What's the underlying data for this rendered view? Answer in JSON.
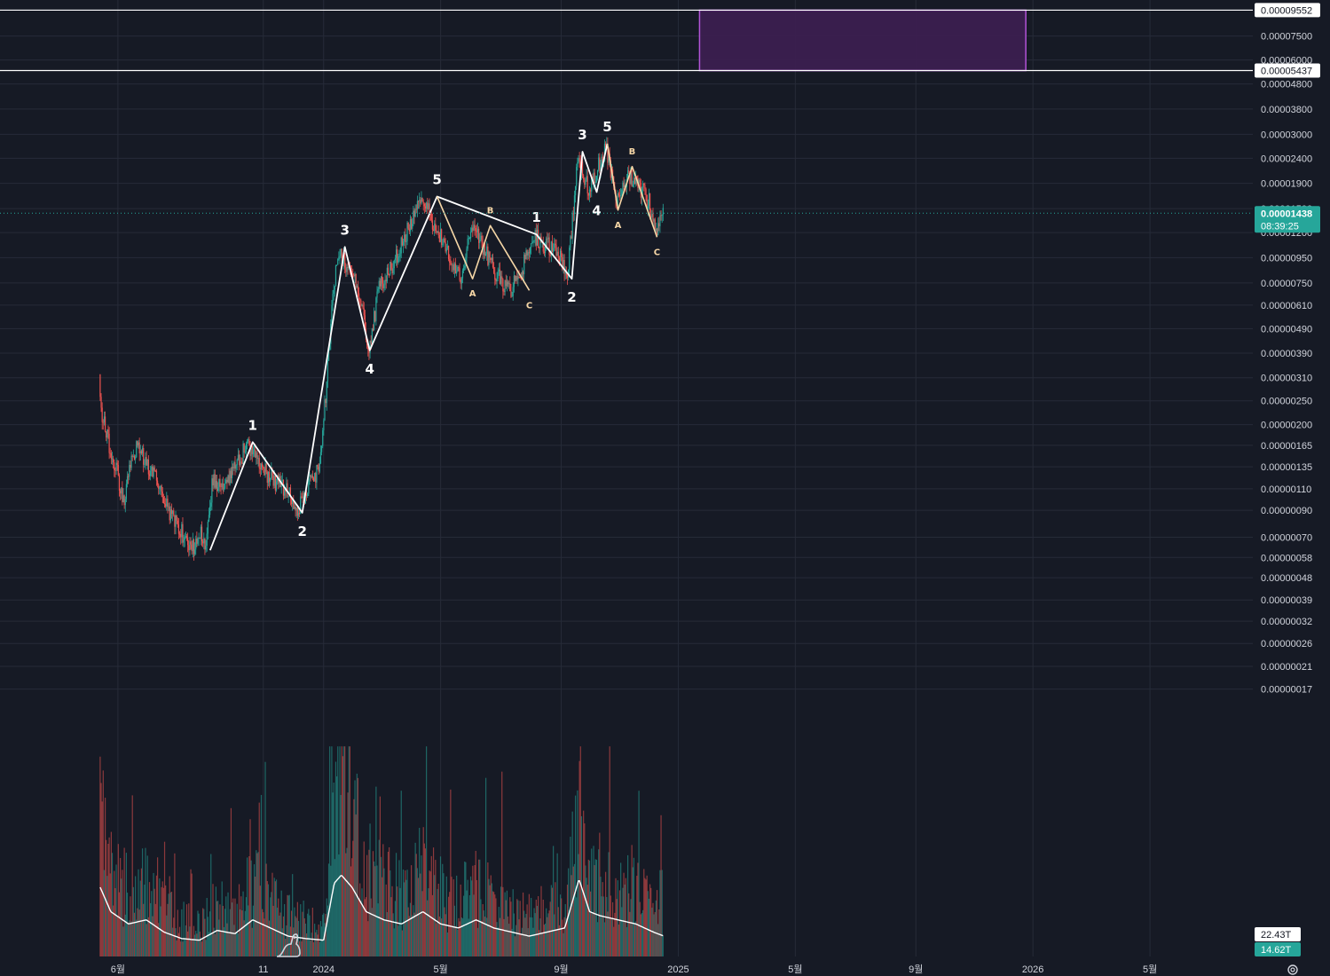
{
  "colors": {
    "background": "#161a25",
    "grid": "#262b38",
    "candle_up": "#26a69a",
    "candle_down": "#ef5350",
    "wave_line": "#ffffff",
    "corrective_line": "#f5d6a6",
    "target_box": "#3b1f4f",
    "target_box_border": "#b154d6",
    "current_price_badge": "#26a69a"
  },
  "chart_data": {
    "type": "candlestick",
    "y_scale": "log",
    "ylim": [
      1.55e-08,
      0.000105
    ],
    "y_ticks": [
      "0.00009552",
      "0.00007500",
      "0.00006000",
      "0.00005437",
      "0.00004800",
      "0.00003800",
      "0.00003000",
      "0.00002400",
      "0.00001900",
      "0.00001500",
      "0.00001200",
      "0.00000950",
      "0.00000750",
      "0.00000610",
      "0.00000490",
      "0.00000390",
      "0.00000310",
      "0.00000250",
      "0.00000200",
      "0.00000165",
      "0.00000135",
      "0.00000110",
      "0.00000090",
      "0.00000070",
      "0.00000058",
      "0.00000048",
      "0.00000039",
      "0.00000032",
      "0.00000026",
      "0.00000021",
      "0.00000017"
    ],
    "x_ticks": [
      "6월",
      "11",
      "2024",
      "5월",
      "9월",
      "2025",
      "5월",
      "9월",
      "2026",
      "5월"
    ],
    "x_ticks_time": [
      2023.42,
      2023.83,
      2024.0,
      2024.33,
      2024.67,
      2025.0,
      2025.33,
      2025.67,
      2026.0,
      2026.33
    ],
    "horizontal_levels": [
      "0.00009552",
      "0.00005437"
    ],
    "target_zone": {
      "from": "2025-01",
      "to": "2025-12",
      "low": "0.00005437",
      "high": "0.00009552"
    },
    "current_price": {
      "value": "0.00001438",
      "countdown": "08:39:25"
    },
    "volume_badges": [
      "22.43T",
      "14.62T"
    ],
    "price_path": [
      [
        2023.37,
        3.2e-06
      ],
      [
        2023.38,
        2.1e-06
      ],
      [
        2023.4,
        1.6e-06
      ],
      [
        2023.42,
        1.3e-06
      ],
      [
        2023.44,
        9.5e-07
      ],
      [
        2023.46,
        1.5e-06
      ],
      [
        2023.48,
        1.7e-06
      ],
      [
        2023.5,
        1.4e-06
      ],
      [
        2023.53,
        1.2e-06
      ],
      [
        2023.56,
        9.5e-07
      ],
      [
        2023.59,
        7.8e-07
      ],
      [
        2023.62,
        6.8e-07
      ],
      [
        2023.64,
        6.4e-07
      ],
      [
        2023.66,
        7.3e-07
      ],
      [
        2023.67,
        6.2e-07
      ],
      [
        2023.69,
        1.2e-06
      ],
      [
        2023.72,
        1.1e-06
      ],
      [
        2023.75,
        1.3e-06
      ],
      [
        2023.79,
        1.7e-06
      ],
      [
        2023.82,
        1.4e-06
      ],
      [
        2023.86,
        1.2e-06
      ],
      [
        2023.9,
        1.1e-06
      ],
      [
        2023.93,
        9.2e-07
      ],
      [
        2023.97,
        1.2e-06
      ],
      [
        2023.99,
        1.3e-06
      ],
      [
        2024.01,
        2.7e-06
      ],
      [
        2024.03,
        7.2e-06
      ],
      [
        2024.05,
        1e-05
      ],
      [
        2024.08,
        8.2e-06
      ],
      [
        2024.11,
        6.5e-06
      ],
      [
        2024.13,
        4e-06
      ],
      [
        2024.16,
        7.2e-06
      ],
      [
        2024.2,
        8.8e-06
      ],
      [
        2024.24,
        1.25e-05
      ],
      [
        2024.28,
        1.65e-05
      ],
      [
        2024.31,
        1.35e-05
      ],
      [
        2024.35,
        1.05e-05
      ],
      [
        2024.39,
        8e-06
      ],
      [
        2024.42,
        1.3e-05
      ],
      [
        2024.46,
        1e-05
      ],
      [
        2024.49,
        8e-06
      ],
      [
        2024.53,
        7e-06
      ],
      [
        2024.56,
        8.5e-06
      ],
      [
        2024.6,
        1.15e-05
      ],
      [
        2024.64,
        1.05e-05
      ],
      [
        2024.67,
        9.5e-06
      ],
      [
        2024.69,
        7.8e-06
      ],
      [
        2024.72,
        2.4e-05
      ],
      [
        2024.75,
        1.8e-05
      ],
      [
        2024.78,
        2.3e-05
      ],
      [
        2024.8,
        2.7e-05
      ],
      [
        2024.83,
        1.6e-05
      ],
      [
        2024.86,
        2.1e-05
      ],
      [
        2024.89,
        1.9e-05
      ],
      [
        2024.92,
        1.6e-05
      ],
      [
        2024.94,
        1.2e-05
      ],
      [
        2024.96,
        1.45e-05
      ]
    ],
    "volume_path": [
      [
        2023.37,
        0.85
      ],
      [
        2023.4,
        0.55
      ],
      [
        2023.45,
        0.4
      ],
      [
        2023.5,
        0.45
      ],
      [
        2023.55,
        0.3
      ],
      [
        2023.6,
        0.22
      ],
      [
        2023.65,
        0.2
      ],
      [
        2023.7,
        0.32
      ],
      [
        2023.75,
        0.28
      ],
      [
        2023.8,
        0.45
      ],
      [
        2023.85,
        0.35
      ],
      [
        2023.9,
        0.25
      ],
      [
        2023.95,
        0.22
      ],
      [
        2024.0,
        0.2
      ],
      [
        2024.03,
        0.9
      ],
      [
        2024.05,
        1.0
      ],
      [
        2024.08,
        0.85
      ],
      [
        2024.12,
        0.55
      ],
      [
        2024.17,
        0.45
      ],
      [
        2024.22,
        0.4
      ],
      [
        2024.28,
        0.55
      ],
      [
        2024.33,
        0.4
      ],
      [
        2024.38,
        0.35
      ],
      [
        2024.43,
        0.45
      ],
      [
        2024.48,
        0.35
      ],
      [
        2024.53,
        0.3
      ],
      [
        2024.58,
        0.25
      ],
      [
        2024.63,
        0.3
      ],
      [
        2024.68,
        0.35
      ],
      [
        2024.72,
        0.95
      ],
      [
        2024.75,
        0.55
      ],
      [
        2024.78,
        0.5
      ],
      [
        2024.83,
        0.45
      ],
      [
        2024.88,
        0.4
      ],
      [
        2024.93,
        0.3
      ],
      [
        2024.96,
        0.25
      ]
    ],
    "primary_waves": [
      {
        "label": "1",
        "t": 2023.8,
        "p": 1.7e-06,
        "pos": "above"
      },
      {
        "label": "2",
        "t": 2023.94,
        "p": 8.8e-07,
        "pos": "below"
      },
      {
        "label": "3",
        "t": 2024.06,
        "p": 1.05e-05,
        "pos": "above"
      },
      {
        "label": "4",
        "t": 2024.13,
        "p": 4e-06,
        "pos": "below"
      },
      {
        "label": "5",
        "t": 2024.32,
        "p": 1.68e-05,
        "pos": "above"
      },
      {
        "label": "1",
        "t": 2024.6,
        "p": 1.18e-05,
        "pos": "above"
      },
      {
        "label": "2",
        "t": 2024.7,
        "p": 7.8e-06,
        "pos": "below"
      },
      {
        "label": "3",
        "t": 2024.73,
        "p": 2.55e-05,
        "pos": "above"
      },
      {
        "label": "4",
        "t": 2024.77,
        "p": 1.75e-05,
        "pos": "below"
      },
      {
        "label": "5",
        "t": 2024.8,
        "p": 2.75e-05,
        "pos": "above"
      }
    ],
    "extra_wave_points": [
      {
        "t": 2023.68,
        "p": 6.2e-07
      }
    ],
    "corrective_waves_1": [
      {
        "label": "",
        "t": 2024.32,
        "p": 1.68e-05,
        "pos": "none"
      },
      {
        "label": "A",
        "t": 2024.42,
        "p": 7.8e-06,
        "pos": "below"
      },
      {
        "label": "B",
        "t": 2024.47,
        "p": 1.28e-05,
        "pos": "above"
      },
      {
        "label": "C",
        "t": 2024.58,
        "p": 7e-06,
        "pos": "below"
      }
    ],
    "corrective_waves_2": [
      {
        "label": "",
        "t": 2024.8,
        "p": 2.75e-05,
        "pos": "none"
      },
      {
        "label": "A",
        "t": 2024.83,
        "p": 1.48e-05,
        "pos": "below"
      },
      {
        "label": "B",
        "t": 2024.87,
        "p": 2.22e-05,
        "pos": "above"
      },
      {
        "label": "C",
        "t": 2024.94,
        "p": 1.15e-05,
        "pos": "below"
      }
    ]
  }
}
